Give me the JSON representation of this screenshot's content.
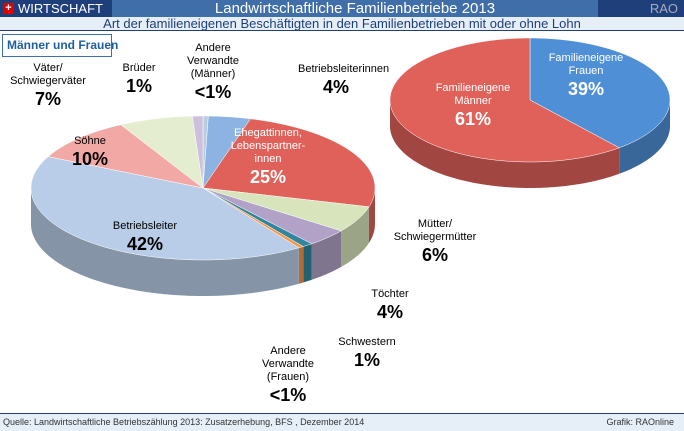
{
  "header": {
    "brand": "WIRTSCHAFT",
    "title": "Landwirtschaftliche Familienbetriebe 2013",
    "rao": "RAO",
    "subtitle": "Art der familieneigenen Beschäftigten in den Familienbetrieben mit oder ohne Lohn"
  },
  "footer": {
    "source": "Quelle: Landwirtschaftliche Betriebszählung 2013: Zusatzerhebung, BFS , Dezember 2014",
    "credit": "Grafik: RAOnline"
  },
  "chart_data": [
    {
      "type": "pie",
      "title": "Männer und Frauen",
      "slices": [
        {
          "label": "Andere Verwandte (Männer)",
          "value": 0.5,
          "display": "<1%",
          "color": "#b8cce4"
        },
        {
          "label": "Betriebsleiterinnen",
          "value": 4,
          "display": "4%",
          "color": "#8db3e2"
        },
        {
          "label": "Ehegattinnen, Lebenspartner-innen",
          "value": 25,
          "display": "25%",
          "color": "#e0615a"
        },
        {
          "label": "Mütter/ Schwiegermütter",
          "value": 6,
          "display": "6%",
          "color": "#d7e4bc"
        },
        {
          "label": "Töchter",
          "value": 4,
          "display": "4%",
          "color": "#b2a2c7"
        },
        {
          "label": "Schwestern",
          "value": 1,
          "display": "1%",
          "color": "#31859c"
        },
        {
          "label": "Andere Verwandte (Frauen)",
          "value": 0.5,
          "display": "<1%",
          "color": "#f79646"
        },
        {
          "label": "Betriebsleiter",
          "value": 42,
          "display": "42%",
          "color": "#b9cde8"
        },
        {
          "label": "Söhne",
          "value": 10,
          "display": "10%",
          "color": "#f2a8a4"
        },
        {
          "label": "Väter/ Schwiegerväter",
          "value": 7,
          "display": "7%",
          "color": "#e4edcf"
        },
        {
          "label": "Brüder",
          "value": 1,
          "display": "1%",
          "color": "#ccc0da"
        }
      ]
    },
    {
      "type": "pie",
      "slices": [
        {
          "label": "Familieneigene Frauen",
          "value": 39,
          "display": "39%",
          "color": "#4f8fd6"
        },
        {
          "label": "Familieneigene Männer",
          "value": 61,
          "display": "61%",
          "color": "#e0615a"
        }
      ]
    }
  ]
}
